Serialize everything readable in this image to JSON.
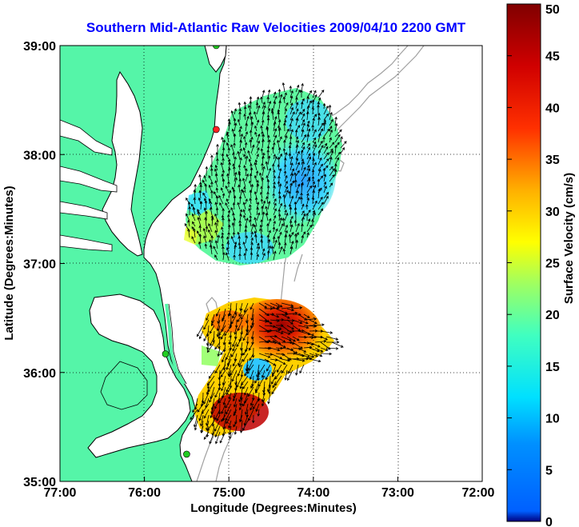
{
  "title": "Southern Mid-Atlantic Raw Velocities 2009/04/10 2200 GMT",
  "x_axis": {
    "label": "Longitude (Degrees:Minutes)",
    "ticks": [
      "77:00",
      "76:00",
      "75:00",
      "74:00",
      "73:00",
      "72:00"
    ],
    "values": [
      -77,
      -76,
      -75,
      -74,
      -73,
      -72
    ]
  },
  "y_axis": {
    "label": "Latitude (Degrees:Minutes)",
    "ticks": [
      "39:00",
      "38:00",
      "37:00",
      "36:00",
      "35:00"
    ],
    "values": [
      39,
      38,
      37,
      36,
      35
    ]
  },
  "colorbar": {
    "label": "Surface Velocity (cm/s)",
    "ticks": [
      "50",
      "45",
      "40",
      "35",
      "30",
      "25",
      "20",
      "15",
      "10",
      "5",
      "0"
    ],
    "min": 0,
    "max": 50,
    "colormap": "jet"
  },
  "map": {
    "extent": {
      "lon": [
        -77,
        -72
      ],
      "lat": [
        35,
        39
      ]
    },
    "grid": true,
    "land_color": "#55f5a8",
    "coast_color": "#000000",
    "bathymetry_color": "#a0a0a0",
    "arrow_color": "#000000",
    "station_markers": [
      {
        "name": "north-station",
        "lon": -75.15,
        "lat": 39.0,
        "color": "#22cc22"
      },
      {
        "name": "mid-station",
        "lon": -75.15,
        "lat": 38.23,
        "color": "#ff2222"
      },
      {
        "name": "hatteras-station",
        "lon": -75.75,
        "lat": 36.17,
        "color": "#22cc22"
      },
      {
        "name": "south-station",
        "lon": -75.5,
        "lat": 35.25,
        "color": "#22cc22"
      }
    ],
    "regions": [
      {
        "name": "northern-velocity-field",
        "dominant_speed_cm_s": "5-20"
      },
      {
        "name": "southern-velocity-field",
        "dominant_speed_cm_s": "20-50"
      }
    ]
  }
}
